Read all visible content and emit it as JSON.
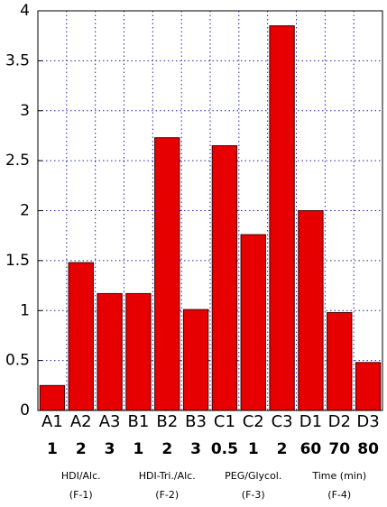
{
  "chart_data": {
    "type": "bar",
    "categories": [
      "A1",
      "A2",
      "A3",
      "B1",
      "B2",
      "B3",
      "C1",
      "C2",
      "C3",
      "D1",
      "D2",
      "D3"
    ],
    "sublabels": [
      "1",
      "2",
      "3",
      "1",
      "2",
      "3",
      "0.5",
      "1",
      "2",
      "60",
      "70",
      "80"
    ],
    "values": [
      0.25,
      1.48,
      1.17,
      1.17,
      2.73,
      1.01,
      2.65,
      1.76,
      3.85,
      2.0,
      0.98,
      0.48
    ],
    "color": "#e60000",
    "groups": [
      {
        "label": "HDI/Alc.",
        "factor": "(F-1)"
      },
      {
        "label": "HDI-Tri./Alc.",
        "factor": "(F-2)"
      },
      {
        "label": "PEG/Glycol.",
        "factor": "(F-3)"
      },
      {
        "label": "Time (min)",
        "factor": "(F-4)"
      }
    ],
    "ylim": [
      0,
      4
    ],
    "yticks": [
      0,
      0.5,
      1,
      1.5,
      2,
      2.5,
      3,
      3.5,
      4
    ],
    "grid": true
  }
}
